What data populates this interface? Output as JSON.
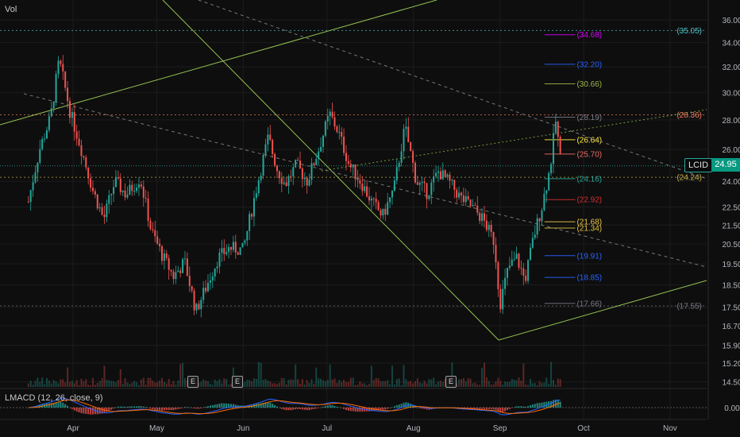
{
  "header": {
    "vol_label": "Vol",
    "macd_label": "LMACD (12, 26, close, 9)"
  },
  "ticker": {
    "symbol": "LCID",
    "last_price": "24.95"
  },
  "earnings_marker": "E",
  "colors": {
    "background": "#0e0e0e",
    "up": "#26a69a",
    "down": "#ef5350",
    "trendline": "#a5d65a",
    "macd": "#2962ff",
    "signal": "#ff6d00"
  },
  "chart_data": [
    {
      "type": "candlestick",
      "title": "",
      "x_tick_labels": [
        "Apr",
        "May",
        "Jun",
        "Jul",
        "Aug",
        "Sep",
        "Oct",
        "Nov"
      ],
      "y_tick_labels": [
        "36.00",
        "34.00",
        "32.00",
        "30.00",
        "28.00",
        "26.00",
        "24.00",
        "22.50",
        "21.50",
        "20.50",
        "19.50",
        "18.50",
        "17.50",
        "16.70",
        "15.90",
        "15.20",
        "14.50"
      ],
      "ylim": [
        14.3,
        36.6
      ],
      "scale": "log",
      "grid": true,
      "price_path": [
        {
          "x": "Mar 16",
          "v": 22.8
        },
        {
          "x": "Mar 20",
          "v": 26.0
        },
        {
          "x": "Mar 24",
          "v": 28.2
        },
        {
          "x": "Mar 27",
          "v": 32.5
        },
        {
          "x": "Mar 31",
          "v": 28.5
        },
        {
          "x": "Apr 4",
          "v": 26.0
        },
        {
          "x": "Apr 8",
          "v": 23.5
        },
        {
          "x": "Apr 12",
          "v": 21.8
        },
        {
          "x": "Apr 16",
          "v": 24.0
        },
        {
          "x": "Apr 20",
          "v": 23.2
        },
        {
          "x": "Apr 25",
          "v": 24.2
        },
        {
          "x": "Apr 29",
          "v": 21.2
        },
        {
          "x": "May 3",
          "v": 19.9
        },
        {
          "x": "May 7",
          "v": 18.9
        },
        {
          "x": "May 11",
          "v": 19.6
        },
        {
          "x": "May 15",
          "v": 17.3
        },
        {
          "x": "May 19",
          "v": 18.5
        },
        {
          "x": "May 23",
          "v": 19.8
        },
        {
          "x": "May 27",
          "v": 20.3
        },
        {
          "x": "Jun 1",
          "v": 20.2
        },
        {
          "x": "Jun 4",
          "v": 22.3
        },
        {
          "x": "Jun 7",
          "v": 24.5
        },
        {
          "x": "Jun 10",
          "v": 26.8
        },
        {
          "x": "Jun 13",
          "v": 24.8
        },
        {
          "x": "Jun 16",
          "v": 23.8
        },
        {
          "x": "Jun 20",
          "v": 25.0
        },
        {
          "x": "Jun 24",
          "v": 24.0
        },
        {
          "x": "Jun 28",
          "v": 26.0
        },
        {
          "x": "Jul 2",
          "v": 28.4
        },
        {
          "x": "Jul 5",
          "v": 27.2
        },
        {
          "x": "Jul 9",
          "v": 25.0
        },
        {
          "x": "Jul 13",
          "v": 24.0
        },
        {
          "x": "Jul 17",
          "v": 22.8
        },
        {
          "x": "Jul 21",
          "v": 22.0
        },
        {
          "x": "Jul 25",
          "v": 23.5
        },
        {
          "x": "Jul 29",
          "v": 27.5
        },
        {
          "x": "Aug 2",
          "v": 24.0
        },
        {
          "x": "Aug 6",
          "v": 23.3
        },
        {
          "x": "Aug 10",
          "v": 24.6
        },
        {
          "x": "Aug 14",
          "v": 23.9
        },
        {
          "x": "Aug 18",
          "v": 23.0
        },
        {
          "x": "Aug 22",
          "v": 22.5
        },
        {
          "x": "Aug 26",
          "v": 21.8
        },
        {
          "x": "Aug 30",
          "v": 20.6
        },
        {
          "x": "Sep 1",
          "v": 17.6
        },
        {
          "x": "Sep 4",
          "v": 19.3
        },
        {
          "x": "Sep 7",
          "v": 19.8
        },
        {
          "x": "Sep 10",
          "v": 18.7
        },
        {
          "x": "Sep 13",
          "v": 20.8
        },
        {
          "x": "Sep 16",
          "v": 22.5
        },
        {
          "x": "Sep 19",
          "v": 24.8
        },
        {
          "x": "Sep 21",
          "v": 27.9
        },
        {
          "x": "Sep 23",
          "v": 24.95
        }
      ],
      "price_levels": [
        {
          "label": "(35.05)",
          "value": 35.05,
          "color": "#4fc3c9"
        },
        {
          "label": "(34.68)",
          "value": 34.68,
          "color": "#d500f9"
        },
        {
          "label": "(32.20)",
          "value": 32.2,
          "color": "#2962ff"
        },
        {
          "label": "(30.66)",
          "value": 30.66,
          "color": "#9ab64a"
        },
        {
          "label": "(28.36)",
          "value": 28.36,
          "color": "#ef7d62"
        },
        {
          "label": "(28.19)",
          "value": 28.19,
          "color": "#787b86"
        },
        {
          "label": "(26.64)",
          "value": 26.64,
          "color": "#ffeb3b"
        },
        {
          "label": "(25.70)",
          "value": 25.7,
          "color": "#f06a6a"
        },
        {
          "label": "(24.24)",
          "value": 24.24,
          "color": "#c5b34a"
        },
        {
          "label": "(24.16)",
          "value": 24.16,
          "color": "#26a69a"
        },
        {
          "label": "(22.92)",
          "value": 22.92,
          "color": "#d32f2f"
        },
        {
          "label": "(21.68)",
          "value": 21.68,
          "color": "#f2c94c"
        },
        {
          "label": "(21.34)",
          "value": 21.34,
          "color": "#e0c040"
        },
        {
          "label": "(19.91)",
          "value": 19.91,
          "color": "#2962ff"
        },
        {
          "label": "(18.85)",
          "value": 18.85,
          "color": "#2962ff"
        },
        {
          "label": "(17.66)",
          "value": 17.66,
          "color": "#787b86"
        },
        {
          "label": "(17.55)",
          "value": 17.55,
          "color": "#787b86"
        }
      ],
      "earnings_dates": [
        "May 18",
        "Jun 1",
        "Aug 23"
      ]
    },
    {
      "type": "line",
      "title": "LMACD (12, 26, close, 9)",
      "y_tick_labels": [
        "0.00"
      ]
    }
  ]
}
